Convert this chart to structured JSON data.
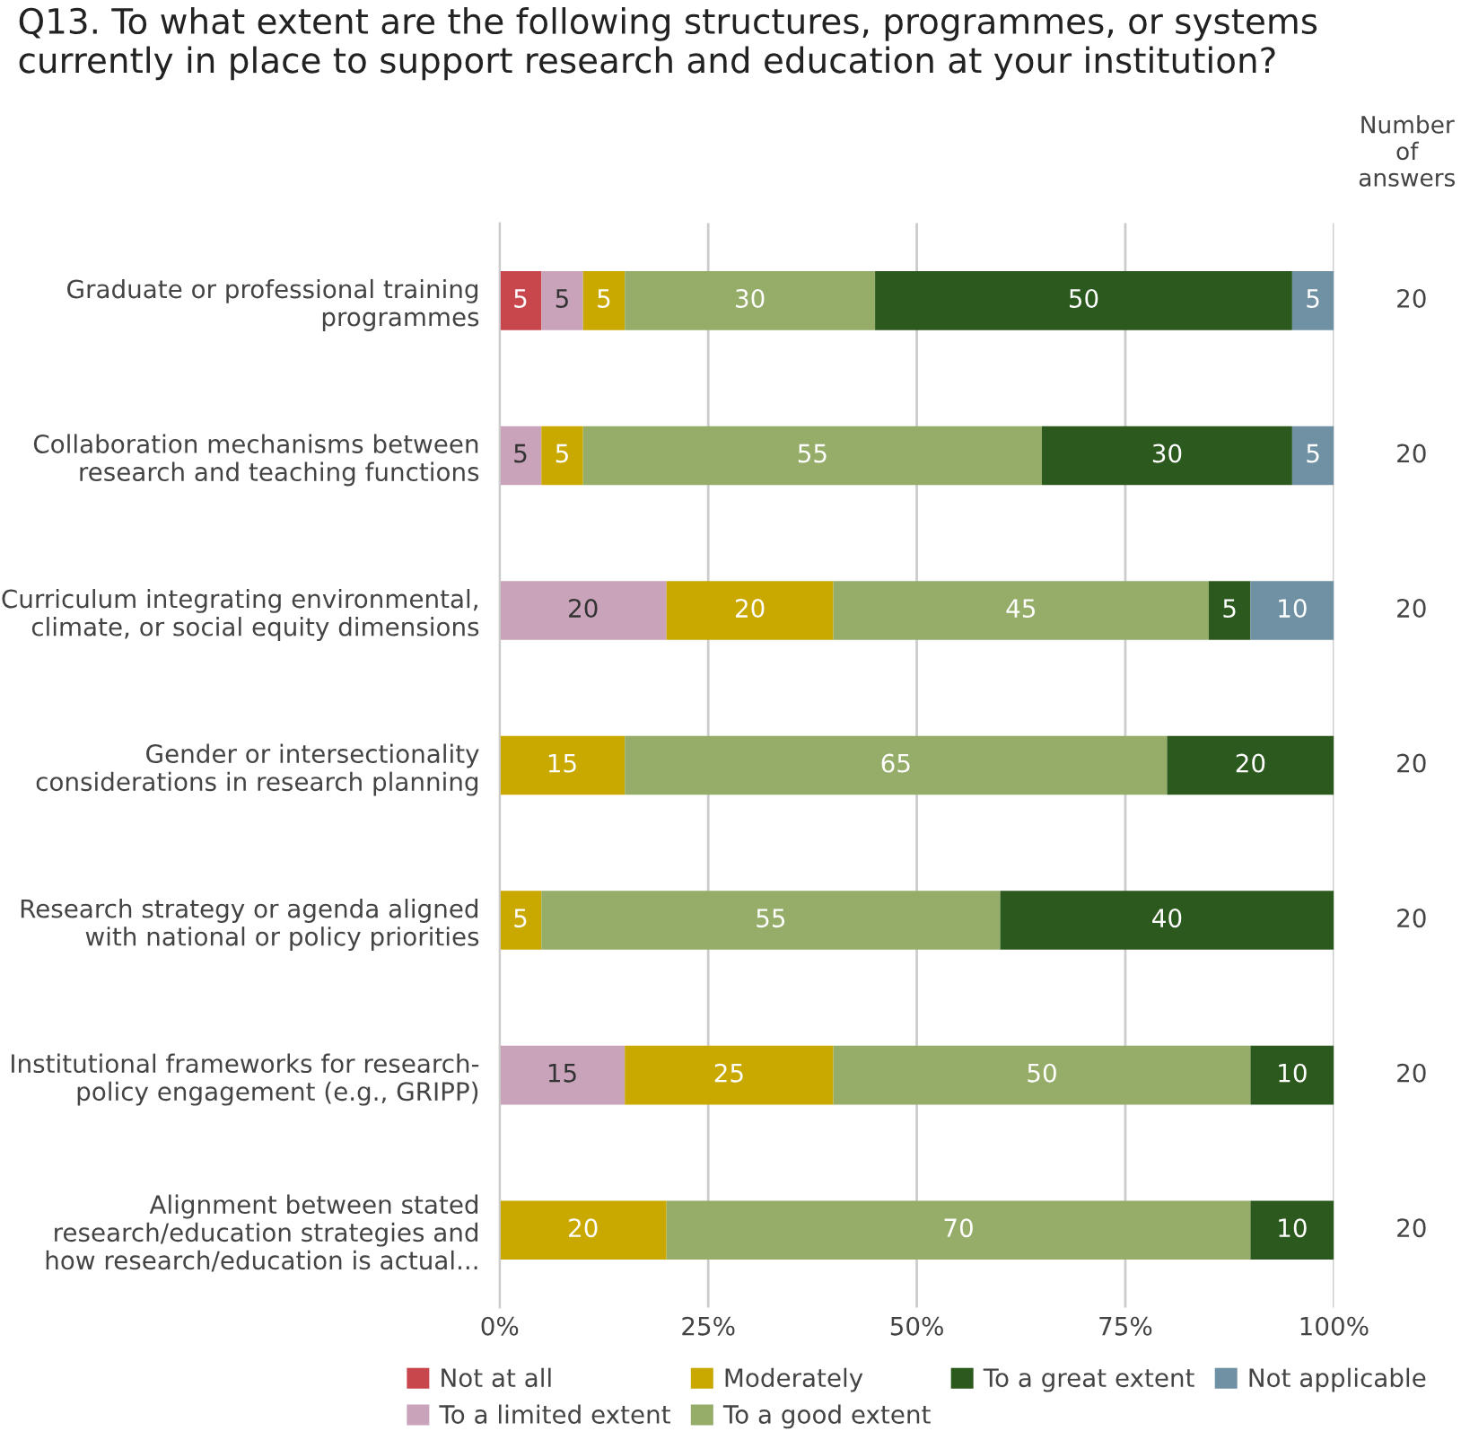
{
  "chart_data": {
    "type": "bar",
    "orientation": "horizontal",
    "stacked": true,
    "title": "Q13. To what extent are the following structures, programmes, or systems\ncurrently in place to support research and education at your institution?",
    "categories": [
      "Graduate or professional training\nprogrammes",
      "Collaboration mechanisms between\nresearch and teaching functions",
      "Curriculum integrating environmental,\nclimate, or social equity dimensions",
      "Gender or intersectionality\nconsiderations in research planning",
      "Research strategy or agenda aligned\nwith national or policy priorities",
      "Institutional frameworks for research-\npolicy engagement (e.g., GRIPP)",
      "Alignment between stated\nresearch/education strategies and\nhow research/education is actual..."
    ],
    "series": [
      {
        "name": "Not at all",
        "color": "#c8474d",
        "values": [
          5,
          null,
          null,
          null,
          null,
          null,
          null
        ]
      },
      {
        "name": "To a limited extent",
        "color": "#c9a3b9",
        "values": [
          5,
          5,
          20,
          null,
          null,
          15,
          null
        ]
      },
      {
        "name": "Moderately",
        "color": "#c9a800",
        "values": [
          5,
          5,
          20,
          15,
          5,
          25,
          20
        ]
      },
      {
        "name": "To a good extent",
        "color": "#95ad69",
        "values": [
          30,
          55,
          45,
          65,
          55,
          50,
          70
        ]
      },
      {
        "name": "To a great extent",
        "color": "#2c5a1e",
        "values": [
          50,
          30,
          5,
          20,
          40,
          10,
          10
        ]
      },
      {
        "name": "Not applicable",
        "color": "#6f91a3",
        "values": [
          5,
          5,
          10,
          null,
          null,
          null,
          null
        ]
      }
    ],
    "xlim": [
      0,
      100
    ],
    "xticks": [
      {
        "value": 0,
        "label": "0%"
      },
      {
        "value": 25,
        "label": "25%"
      },
      {
        "value": 50,
        "label": "50%"
      },
      {
        "value": 75,
        "label": "75%"
      },
      {
        "value": 100,
        "label": "100%"
      }
    ],
    "grid": "x",
    "legend": "bottom",
    "data_labels": true,
    "annotations": [
      "Number\nof\nanswers",
      "20",
      "20",
      "20",
      "20",
      "20",
      "20",
      "20"
    ]
  }
}
